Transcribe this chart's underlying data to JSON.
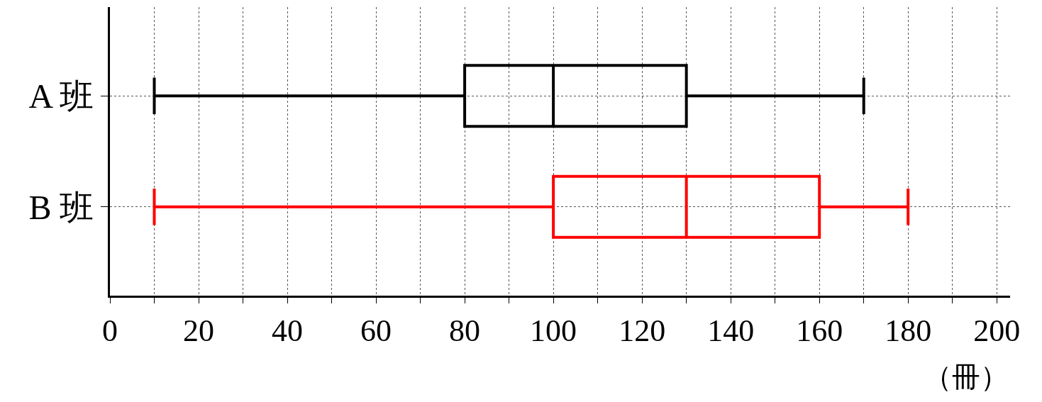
{
  "chart_data": {
    "type": "box",
    "orientation": "horizontal",
    "categories": [
      "A 班",
      "B 班"
    ],
    "boxes": [
      {
        "low": 10,
        "q1": 80,
        "median": 100,
        "q3": 130,
        "high": 170
      },
      {
        "low": 10,
        "q1": 100,
        "median": 130,
        "q3": 160,
        "high": 180
      }
    ],
    "colors": [
      "#000000",
      "#ff0000"
    ],
    "xlabel": "（冊）",
    "xlim": [
      0,
      203
    ],
    "xticks": [
      0,
      {
        "value": 10,
        "label": null
      },
      20,
      {
        "value": 30,
        "label": null
      },
      40,
      {
        "value": 50,
        "label": null
      },
      60,
      {
        "value": 70,
        "label": null
      },
      80,
      {
        "value": 90,
        "label": null
      },
      100,
      {
        "value": 110,
        "label": null
      },
      120,
      {
        "value": 130,
        "label": null
      },
      140,
      {
        "value": 150,
        "label": null
      },
      160,
      {
        "value": 170,
        "label": null
      },
      180,
      {
        "value": 190,
        "label": null
      },
      200
    ],
    "grid": true
  }
}
